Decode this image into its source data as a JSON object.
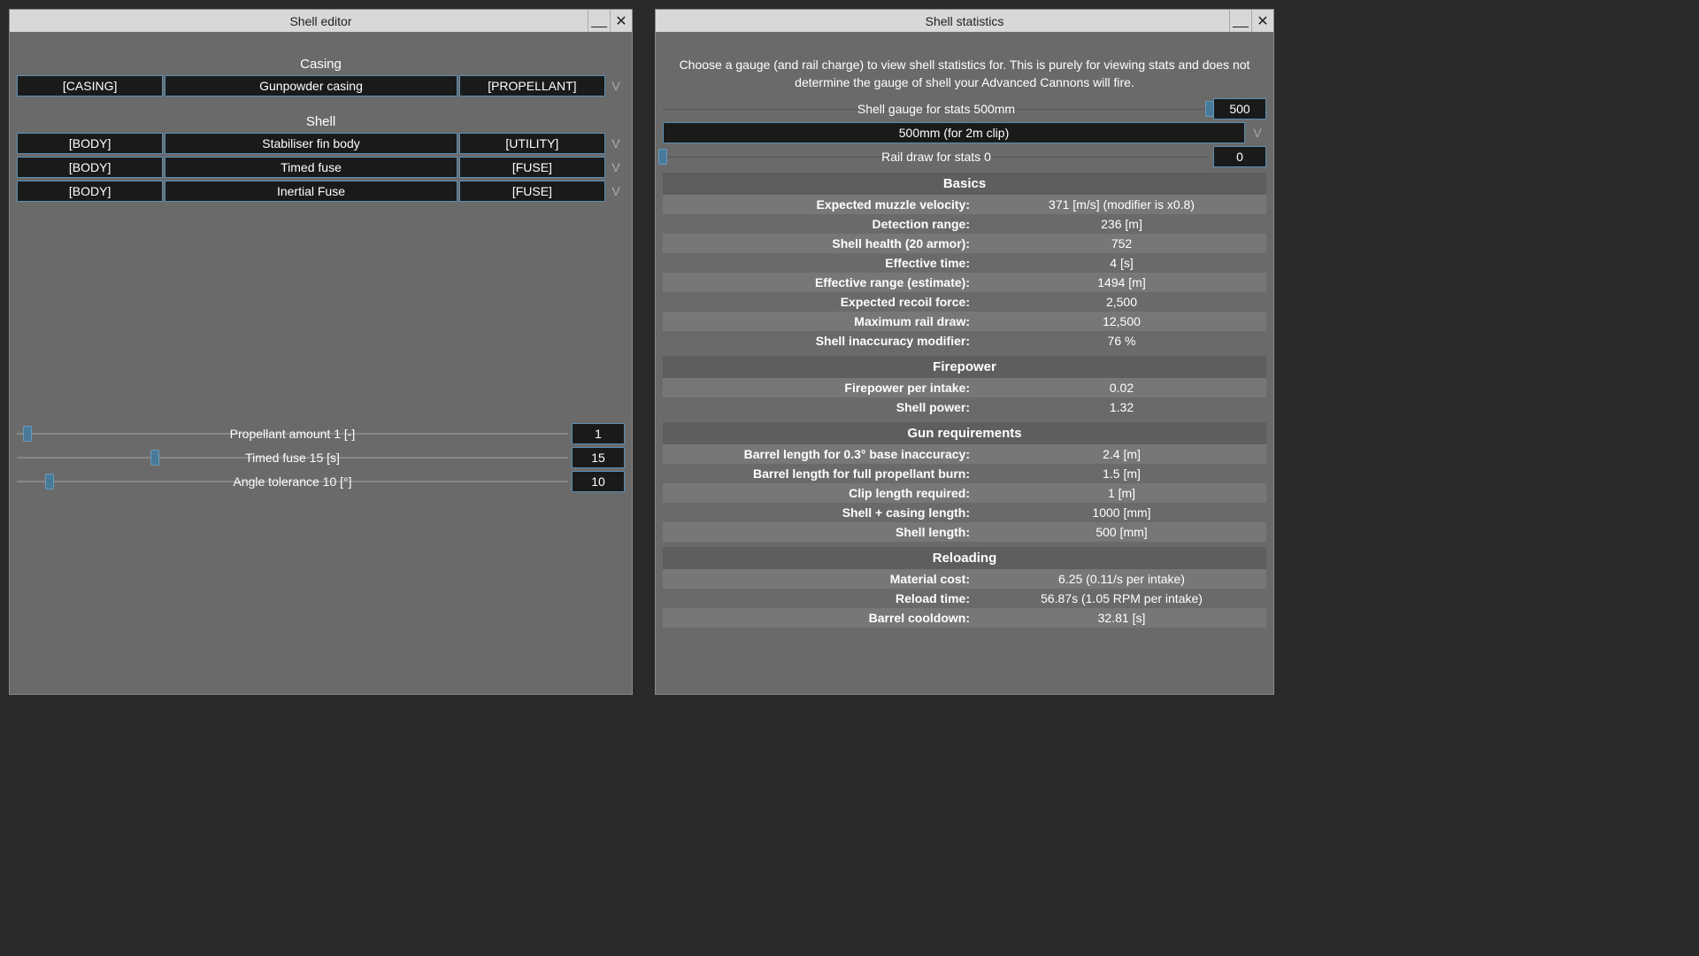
{
  "editor": {
    "title": "Shell editor",
    "sections": {
      "casing_label": "Casing",
      "shell_label": "Shell"
    },
    "casing_row": {
      "tag": "[CASING]",
      "name": "Gunpowder casing",
      "type": "[PROPELLANT]",
      "v": "V"
    },
    "shell_rows": [
      {
        "tag": "[BODY]",
        "name": "Stabiliser fin body",
        "type": "[UTILITY]",
        "v": "V"
      },
      {
        "tag": "[BODY]",
        "name": "Timed fuse",
        "type": "[FUSE]",
        "v": "V"
      },
      {
        "tag": "[BODY]",
        "name": "Inertial Fuse",
        "type": "[FUSE]",
        "v": "V"
      }
    ],
    "sliders": [
      {
        "label": "Propellant amount 1 [-]",
        "value": "1",
        "thumb_pct": 2
      },
      {
        "label": "Timed fuse 15 [s]",
        "value": "15",
        "thumb_pct": 25
      },
      {
        "label": "Angle tolerance 10 [°]",
        "value": "10",
        "thumb_pct": 6
      }
    ]
  },
  "stats": {
    "title": "Shell statistics",
    "description": "Choose a gauge (and rail charge) to view shell statistics for. This is purely for viewing stats and does not determine the gauge of shell your Advanced Cannons will fire.",
    "gauge_slider": {
      "label": "Shell gauge for stats 500mm",
      "value": "500",
      "thumb_pct": 100
    },
    "gauge_cell": {
      "text": "500mm (for 2m clip)",
      "v": "V"
    },
    "rail_slider": {
      "label": "Rail draw for stats 0",
      "value": "0",
      "thumb_pct": 0
    },
    "sections": [
      {
        "header": "Basics",
        "rows": [
          {
            "label": "Expected muzzle velocity:",
            "value": "371 [m/s] (modifier is x0.8)",
            "alt": true
          },
          {
            "label": "Detection range:",
            "value": "236 [m]",
            "alt": false
          },
          {
            "label": "Shell health (20 armor):",
            "value": "752",
            "alt": true
          },
          {
            "label": "Effective time:",
            "value": "4 [s]",
            "alt": false
          },
          {
            "label": "Effective range (estimate):",
            "value": "1494 [m]",
            "alt": true
          },
          {
            "label": "Expected recoil force:",
            "value": "2,500",
            "alt": false
          },
          {
            "label": "Maximum rail draw:",
            "value": "12,500",
            "alt": true
          },
          {
            "label": "Shell inaccuracy modifier:",
            "value": "76 %",
            "alt": false
          }
        ]
      },
      {
        "header": "Firepower",
        "rows": [
          {
            "label": "Firepower per intake:",
            "value": "0.02",
            "alt": true
          },
          {
            "label": "Shell power:",
            "value": "1.32",
            "alt": false
          }
        ]
      },
      {
        "header": "Gun requirements",
        "rows": [
          {
            "label": "Barrel length for 0.3° base inaccuracy:",
            "value": "2.4 [m]",
            "alt": true
          },
          {
            "label": "Barrel length for full propellant burn:",
            "value": "1.5 [m]",
            "alt": false
          },
          {
            "label": "Clip length required:",
            "value": "1 [m]",
            "alt": true
          },
          {
            "label": "Shell + casing length:",
            "value": "1000 [mm]",
            "alt": false
          },
          {
            "label": "Shell length:",
            "value": "500 [mm]",
            "alt": true
          }
        ]
      },
      {
        "header": "Reloading",
        "rows": [
          {
            "label": "Material cost:",
            "value": "6.25 (0.11/s per intake)",
            "alt": true
          },
          {
            "label": "Reload time:",
            "value": "56.87s (1.05 RPM per intake)",
            "alt": false
          },
          {
            "label": "Barrel cooldown:",
            "value": "32.81 [s]",
            "alt": true
          }
        ]
      }
    ]
  },
  "colors": {
    "window_bg": "#6a6a6a",
    "cell_bg": "#1a1a1a",
    "cell_border": "#5a8fb5",
    "titlebar_bg": "#d8d8d8",
    "alt_row": "#777777"
  }
}
